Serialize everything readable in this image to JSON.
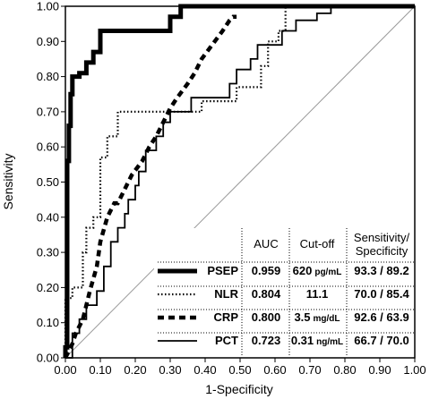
{
  "chart_data": {
    "type": "line",
    "xlabel": "1-Specificity",
    "ylabel": "Sensitivity",
    "xlim": [
      0,
      1
    ],
    "ylim": [
      0,
      1
    ],
    "xticks": [
      "0.00",
      "0.10",
      "0.20",
      "0.30",
      "0.40",
      "0.50",
      "0.60",
      "0.70",
      "0.80",
      "0.90",
      "1.00"
    ],
    "yticks": [
      "0.00",
      "0.10",
      "0.20",
      "0.30",
      "0.40",
      "0.50",
      "0.60",
      "0.70",
      "0.80",
      "0.90",
      "1.00"
    ],
    "reference_line": {
      "x": [
        0,
        1
      ],
      "y": [
        0,
        1
      ],
      "color": "#999999"
    },
    "legend": {
      "placement": "bottom-right",
      "headers": {
        "auc": "AUC",
        "cutoff": "Cut-off",
        "sens_spec_line1": "Sensitivity/",
        "sens_spec_line2": "Specificity"
      },
      "rows": [
        {
          "name": "PSEP",
          "auc": "0.959",
          "cutoff_value": "620",
          "cutoff_unit": "pg/mL",
          "sens_spec": "93.3 / 89.2",
          "style": "thick"
        },
        {
          "name": "NLR",
          "auc": "0.804",
          "cutoff_value": "11.1",
          "cutoff_unit": "",
          "sens_spec": "70.0 / 85.4",
          "style": "dotted"
        },
        {
          "name": "CRP",
          "auc": "0.800",
          "cutoff_value": "3.5",
          "cutoff_unit": "mg/dL",
          "sens_spec": "92.6 / 63.9",
          "style": "dashed"
        },
        {
          "name": "PCT",
          "auc": "0.723",
          "cutoff_value": "0.31",
          "cutoff_unit": "ng/mL",
          "sens_spec": "66.7 / 70.0",
          "style": "solid"
        }
      ]
    },
    "series": [
      {
        "name": "PSEP",
        "style": "thick",
        "x": [
          0,
          0,
          0.005,
          0.005,
          0.01,
          0.01,
          0.015,
          0.015,
          0.02,
          0.02,
          0.04,
          0.04,
          0.06,
          0.06,
          0.08,
          0.08,
          0.1,
          0.1,
          0.3,
          0.3,
          0.33,
          0.33,
          1.0
        ],
        "y": [
          0,
          0.03,
          0.03,
          0.56,
          0.56,
          0.66,
          0.66,
          0.75,
          0.75,
          0.8,
          0.8,
          0.81,
          0.81,
          0.84,
          0.84,
          0.87,
          0.87,
          0.93,
          0.93,
          0.97,
          0.97,
          1.0,
          1.0
        ]
      },
      {
        "name": "NLR",
        "style": "dotted",
        "x": [
          0,
          0,
          0.02,
          0.02,
          0.05,
          0.05,
          0.06,
          0.06,
          0.08,
          0.08,
          0.1,
          0.1,
          0.12,
          0.12,
          0.15,
          0.15,
          0.39,
          0.39,
          0.49,
          0.49,
          0.56,
          0.56,
          0.58,
          0.58,
          0.61,
          0.61,
          0.63,
          0.63,
          0.78,
          0.78,
          1.0
        ],
        "y": [
          0,
          0.17,
          0.17,
          0.2,
          0.2,
          0.3,
          0.3,
          0.37,
          0.37,
          0.4,
          0.4,
          0.57,
          0.57,
          0.63,
          0.63,
          0.7,
          0.7,
          0.73,
          0.73,
          0.77,
          0.77,
          0.83,
          0.83,
          0.9,
          0.9,
          0.93,
          0.93,
          1.0,
          1.0,
          1.0,
          1.0
        ]
      },
      {
        "name": "CRP",
        "style": "dashed",
        "x": [
          0,
          0.02,
          0.03,
          0.05,
          0.07,
          0.09,
          0.1,
          0.12,
          0.14,
          0.15,
          0.17,
          0.19,
          0.22,
          0.24,
          0.26,
          0.28,
          0.3,
          0.32,
          0.35,
          0.37,
          0.39,
          0.42,
          0.45,
          0.47,
          0.48,
          0.49
        ],
        "y": [
          0,
          0.04,
          0.07,
          0.11,
          0.19,
          0.26,
          0.33,
          0.4,
          0.44,
          0.44,
          0.48,
          0.52,
          0.56,
          0.6,
          0.63,
          0.67,
          0.71,
          0.74,
          0.78,
          0.81,
          0.85,
          0.89,
          0.93,
          0.96,
          0.97,
          0.97
        ]
      },
      {
        "name": "PCT",
        "style": "solid",
        "x": [
          0,
          0.02,
          0.02,
          0.04,
          0.04,
          0.06,
          0.06,
          0.09,
          0.09,
          0.11,
          0.11,
          0.13,
          0.13,
          0.15,
          0.15,
          0.17,
          0.17,
          0.18,
          0.18,
          0.2,
          0.2,
          0.21,
          0.21,
          0.23,
          0.23,
          0.26,
          0.26,
          0.28,
          0.28,
          0.3,
          0.3,
          0.32,
          0.32,
          0.36,
          0.36,
          0.4,
          0.4,
          0.47,
          0.47,
          0.49,
          0.49,
          0.53,
          0.53,
          0.55,
          0.55,
          0.58,
          0.58,
          0.62,
          0.62,
          0.66,
          0.66,
          0.72,
          0.72,
          0.76,
          0.76,
          1.0
        ],
        "y": [
          0,
          0,
          0.07,
          0.07,
          0.11,
          0.11,
          0.15,
          0.15,
          0.19,
          0.19,
          0.26,
          0.26,
          0.33,
          0.33,
          0.37,
          0.37,
          0.41,
          0.41,
          0.45,
          0.45,
          0.49,
          0.49,
          0.53,
          0.53,
          0.59,
          0.59,
          0.63,
          0.63,
          0.67,
          0.67,
          0.7,
          0.7,
          0.7,
          0.7,
          0.74,
          0.74,
          0.74,
          0.74,
          0.78,
          0.78,
          0.82,
          0.82,
          0.85,
          0.85,
          0.89,
          0.89,
          0.89,
          0.89,
          0.93,
          0.93,
          0.96,
          0.96,
          0.98,
          0.98,
          1.0,
          1.0
        ]
      }
    ]
  }
}
